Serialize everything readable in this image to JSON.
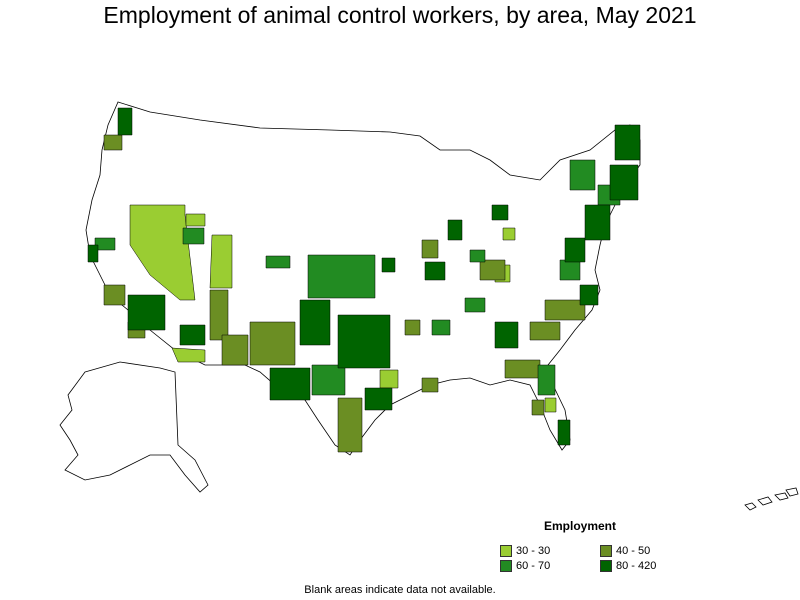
{
  "title": "Employment of animal control workers, by area, May 2021",
  "legend": {
    "title": "Employment",
    "items": [
      {
        "label": "30 - 30",
        "color": "#9acd32"
      },
      {
        "label": "40 - 50",
        "color": "#6b8e23"
      },
      {
        "label": "60 - 70",
        "color": "#228b22"
      },
      {
        "label": "80 - 420",
        "color": "#006400"
      }
    ]
  },
  "footnote": "Blank areas indicate data not available.",
  "colors": {
    "background": "#ffffff",
    "border": "#000000",
    "no_data": "#ffffff"
  }
}
